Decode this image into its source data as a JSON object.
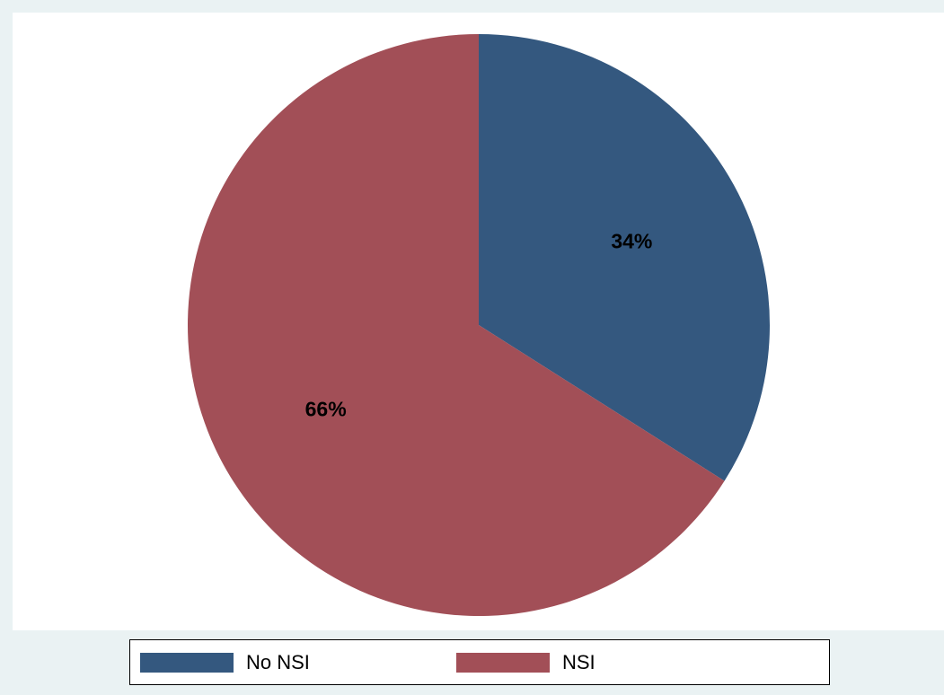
{
  "chart_data": {
    "type": "pie",
    "title": "",
    "slices": [
      {
        "label": "No NSI",
        "value": 34,
        "display": "34%",
        "color": "#34587f"
      },
      {
        "label": "NSI",
        "value": 66,
        "display": "66%",
        "color": "#a24f57"
      }
    ],
    "start_angle_deg": 90,
    "direction": "clockwise",
    "legend_position": "bottom",
    "background_color": "#eaf2f3",
    "plot_background_color": "#ffffff"
  },
  "legend": {
    "items": [
      {
        "label": "No NSI",
        "color": "#34587f"
      },
      {
        "label": "NSI",
        "color": "#a24f57"
      }
    ]
  }
}
